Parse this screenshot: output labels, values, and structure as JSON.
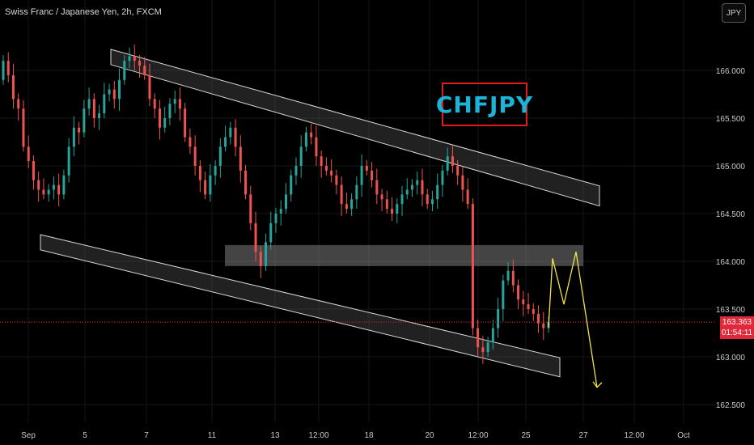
{
  "header": {
    "symbol_title": "Swiss Franc / Japanese Yen, 2h, FXCM",
    "currency_button": "JPY"
  },
  "annotation": {
    "label": "CHFJPY"
  },
  "price_tag": {
    "price": "163.363",
    "countdown": "01:54:11"
  },
  "colors": {
    "up": "#26a69a",
    "down": "#ef5350",
    "forecast": "#f2e34a",
    "badge_text": "#19b4d6",
    "badge_border": "#e01b1b"
  },
  "chart_data": {
    "type": "candlestick",
    "y_axis": {
      "ylim": [
        162.38,
        166.65
      ],
      "ticks": [
        "166.000",
        "165.500",
        "165.000",
        "164.500",
        "164.000",
        "163.500",
        "163.000",
        "162.500"
      ],
      "position": "right"
    },
    "x_axis": {
      "ticks": [
        "Sep",
        "5",
        "7",
        "11",
        "13",
        "12:00",
        "18",
        "20",
        "12:00",
        "25",
        "27",
        "12:00",
        "Oct"
      ]
    },
    "last_price": 163.363,
    "channel": {
      "upper_band": [
        [
          2,
          166.22,
          166.06
        ],
        [
          74,
          164.79,
          164.58
        ]
      ],
      "lower_band": [
        [
          0,
          164.28,
          164.12
        ],
        [
          66,
          162.99,
          162.79
        ]
      ]
    },
    "resistance_zone": [
      163.95,
      164.17
    ],
    "forecast_path": [
      163.31,
      164.03,
      163.55,
      164.1,
      162.68
    ],
    "candles_close": [
      166.1,
      165.95,
      165.7,
      165.6,
      165.2,
      165.05,
      164.85,
      164.75,
      164.7,
      164.75,
      164.8,
      164.7,
      164.9,
      165.2,
      165.4,
      165.35,
      165.6,
      165.7,
      165.5,
      165.55,
      165.75,
      165.8,
      165.7,
      165.9,
      166.1,
      166.15,
      166.1,
      166.05,
      165.95,
      165.7,
      165.6,
      165.4,
      165.5,
      165.65,
      165.7,
      165.6,
      165.3,
      165.2,
      165.0,
      164.85,
      164.7,
      164.9,
      165.0,
      165.2,
      165.3,
      165.4,
      165.2,
      164.95,
      164.7,
      164.4,
      164.1,
      163.95,
      164.2,
      164.4,
      164.5,
      164.55,
      164.7,
      164.9,
      165.0,
      165.2,
      165.35,
      165.3,
      165.1,
      165.0,
      164.95,
      164.9,
      164.8,
      164.6,
      164.55,
      164.65,
      164.8,
      165.0,
      164.95,
      164.85,
      164.7,
      164.65,
      164.55,
      164.5,
      164.6,
      164.7,
      164.75,
      164.8,
      164.85,
      164.7,
      164.6,
      164.65,
      164.8,
      164.95,
      165.1,
      165.0,
      164.9,
      164.75,
      164.6,
      163.3,
      163.1,
      163.05,
      163.15,
      163.3,
      163.5,
      163.8,
      163.9,
      163.75,
      163.6,
      163.55,
      163.5,
      163.45,
      163.35,
      163.3,
      163.363
    ]
  }
}
